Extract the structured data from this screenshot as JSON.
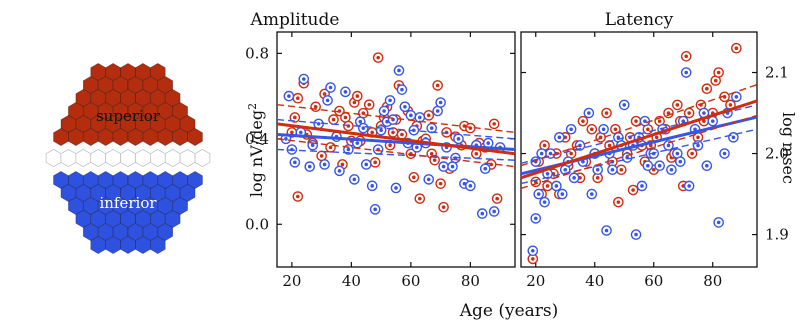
{
  "colors": {
    "superior": "#b32d0e",
    "inferior": "#2f51e0",
    "separator": "#ffffff",
    "red": "#d02c10",
    "blue": "#3756e6"
  },
  "hexmap": {
    "superior_label": "superior",
    "inferior_label": "inferior"
  },
  "chart_data": [
    {
      "type": "scatter",
      "title": "Amplitude",
      "xlabel": "Age (years)",
      "ylabel": "log nV/deg2",
      "ylabel_base": "log nV/deg",
      "ylabel_sup": "2",
      "xlim": [
        15,
        95
      ],
      "ylim": [
        -0.2,
        0.9
      ],
      "xticks": [
        20,
        40,
        60,
        80
      ],
      "yticks": [
        0.0,
        0.4,
        0.8
      ],
      "ytick_labels": [
        "0.0",
        "0.4",
        "0.8"
      ],
      "legend": "none",
      "fits": {
        "red": {
          "x": [
            15,
            95
          ],
          "y": [
            0.47,
            0.33
          ],
          "ci_lower": [
            0.4,
            0.27
          ],
          "ci_upper": [
            0.56,
            0.43
          ]
        },
        "blue": {
          "x": [
            15,
            95
          ],
          "y": [
            0.42,
            0.35
          ],
          "ci_lower": [
            0.35,
            0.3
          ],
          "ci_upper": [
            0.49,
            0.4
          ]
        }
      },
      "series": [
        {
          "color": "red",
          "points": [
            [
              20,
              0.43
            ],
            [
              21,
              0.5
            ],
            [
              22,
              0.59
            ],
            [
              22,
              0.13
            ],
            [
              24,
              0.66
            ],
            [
              25,
              0.42
            ],
            [
              27,
              0.38
            ],
            [
              28,
              0.55
            ],
            [
              30,
              0.32
            ],
            [
              31,
              0.61
            ],
            [
              33,
              0.36
            ],
            [
              34,
              0.49
            ],
            [
              36,
              0.53
            ],
            [
              37,
              0.28
            ],
            [
              38,
              0.5
            ],
            [
              39,
              0.46
            ],
            [
              40,
              0.39
            ],
            [
              41,
              0.57
            ],
            [
              42,
              0.6
            ],
            [
              43,
              0.39
            ],
            [
              44,
              0.52
            ],
            [
              46,
              0.56
            ],
            [
              47,
              0.43
            ],
            [
              48,
              0.29
            ],
            [
              49,
              0.78
            ],
            [
              50,
              0.46
            ],
            [
              51,
              0.5
            ],
            [
              52,
              0.55
            ],
            [
              53,
              0.37
            ],
            [
              54,
              0.43
            ],
            [
              55,
              0.49
            ],
            [
              56,
              0.65
            ],
            [
              57,
              0.42
            ],
            [
              58,
              0.55
            ],
            [
              59,
              0.53
            ],
            [
              60,
              0.33
            ],
            [
              61,
              0.22
            ],
            [
              62,
              0.46
            ],
            [
              63,
              0.12
            ],
            [
              64,
              0.39
            ],
            [
              65,
              0.4
            ],
            [
              66,
              0.51
            ],
            [
              67,
              0.33
            ],
            [
              68,
              0.3
            ],
            [
              69,
              0.65
            ],
            [
              70,
              0.19
            ],
            [
              71,
              0.08
            ],
            [
              72,
              0.43
            ],
            [
              73,
              0.26
            ],
            [
              75,
              0.41
            ],
            [
              77,
              0.37
            ],
            [
              78,
              0.46
            ],
            [
              80,
              0.45
            ],
            [
              82,
              0.33
            ],
            [
              83,
              0.38
            ],
            [
              85,
              0.36
            ],
            [
              87,
              0.28
            ],
            [
              88,
              0.47
            ],
            [
              89,
              0.12
            ]
          ]
        },
        {
          "color": "blue",
          "points": [
            [
              18,
              0.4
            ],
            [
              19,
              0.6
            ],
            [
              20,
              0.35
            ],
            [
              21,
              0.29
            ],
            [
              23,
              0.43
            ],
            [
              24,
              0.68
            ],
            [
              26,
              0.27
            ],
            [
              27,
              0.37
            ],
            [
              29,
              0.47
            ],
            [
              31,
              0.28
            ],
            [
              32,
              0.58
            ],
            [
              33,
              0.64
            ],
            [
              35,
              0.41
            ],
            [
              36,
              0.25
            ],
            [
              38,
              0.62
            ],
            [
              39,
              0.35
            ],
            [
              41,
              0.21
            ],
            [
              42,
              0.38
            ],
            [
              43,
              0.48
            ],
            [
              44,
              0.45
            ],
            [
              45,
              0.28
            ],
            [
              47,
              0.18
            ],
            [
              48,
              0.07
            ],
            [
              49,
              0.35
            ],
            [
              50,
              0.44
            ],
            [
              51,
              0.53
            ],
            [
              52,
              0.48
            ],
            [
              53,
              0.58
            ],
            [
              54,
              0.49
            ],
            [
              55,
              0.17
            ],
            [
              56,
              0.72
            ],
            [
              57,
              0.63
            ],
            [
              58,
              0.55
            ],
            [
              59,
              0.38
            ],
            [
              60,
              0.51
            ],
            [
              61,
              0.44
            ],
            [
              62,
              0.36
            ],
            [
              63,
              0.5
            ],
            [
              65,
              0.38
            ],
            [
              66,
              0.21
            ],
            [
              67,
              0.45
            ],
            [
              69,
              0.53
            ],
            [
              70,
              0.57
            ],
            [
              71,
              0.27
            ],
            [
              72,
              0.36
            ],
            [
              74,
              0.27
            ],
            [
              75,
              0.31
            ],
            [
              76,
              0.4
            ],
            [
              78,
              0.19
            ],
            [
              80,
              0.18
            ],
            [
              82,
              0.37
            ],
            [
              84,
              0.05
            ],
            [
              85,
              0.26
            ],
            [
              86,
              0.38
            ],
            [
              88,
              0.06
            ],
            [
              90,
              0.36
            ]
          ]
        }
      ]
    },
    {
      "type": "scatter",
      "title": "Latency",
      "xlabel": "Age (years)",
      "ylabel": "log msec",
      "xlim": [
        15,
        95
      ],
      "ylim": [
        1.86,
        2.15
      ],
      "xticks": [
        20,
        40,
        60,
        80
      ],
      "yticks": [
        1.9,
        2.0,
        2.1
      ],
      "ytick_labels": [
        "1.9",
        "2.0",
        "2.1"
      ],
      "legend": "none",
      "fits": {
        "red": {
          "x": [
            15,
            95
          ],
          "y": [
            1.97,
            2.065
          ],
          "ci_lower": [
            1.957,
            2.047
          ],
          "ci_upper": [
            1.985,
            2.085
          ]
        },
        "blue": {
          "x": [
            15,
            95
          ],
          "y": [
            1.975,
            2.045
          ],
          "ci_lower": [
            1.963,
            2.03
          ],
          "ci_upper": [
            1.988,
            2.06
          ]
        }
      },
      "series": [
        {
          "color": "red",
          "points": [
            [
              19,
              1.87
            ],
            [
              20,
              1.965
            ],
            [
              21,
              1.99
            ],
            [
              22,
              1.95
            ],
            [
              23,
              2.01
            ],
            [
              24,
              1.96
            ],
            [
              26,
              1.975
            ],
            [
              27,
              2.0
            ],
            [
              28,
              1.95
            ],
            [
              30,
              2.02
            ],
            [
              31,
              1.985
            ],
            [
              32,
              2.0
            ],
            [
              34,
              2.01
            ],
            [
              35,
              1.97
            ],
            [
              36,
              2.04
            ],
            [
              37,
              1.99
            ],
            [
              39,
              2.03
            ],
            [
              40,
              2.0
            ],
            [
              41,
              1.97
            ],
            [
              42,
              2.02
            ],
            [
              44,
              2.05
            ],
            [
              45,
              2.01
            ],
            [
              46,
              1.99
            ],
            [
              47,
              2.03
            ],
            [
              48,
              1.94
            ],
            [
              49,
              1.98
            ],
            [
              51,
              2.0
            ],
            [
              52,
              2.02
            ],
            [
              53,
              1.955
            ],
            [
              54,
              2.04
            ],
            [
              56,
              2.01
            ],
            [
              57,
              1.99
            ],
            [
              58,
              2.03
            ],
            [
              59,
              2.01
            ],
            [
              60,
              1.98
            ],
            [
              61,
              2.02
            ],
            [
              62,
              2.04
            ],
            [
              64,
              2.03
            ],
            [
              65,
              2.05
            ],
            [
              66,
              1.995
            ],
            [
              67,
              2.0
            ],
            [
              68,
              2.06
            ],
            [
              69,
              2.04
            ],
            [
              70,
              1.96
            ],
            [
              71,
              2.12
            ],
            [
              72,
              2.05
            ],
            [
              73,
              2.0
            ],
            [
              75,
              2.02
            ],
            [
              76,
              2.06
            ],
            [
              77,
              2.04
            ],
            [
              78,
              2.08
            ],
            [
              80,
              2.05
            ],
            [
              81,
              2.09
            ],
            [
              82,
              2.1
            ],
            [
              84,
              2.07
            ],
            [
              86,
              2.06
            ],
            [
              88,
              2.13
            ]
          ]
        },
        {
          "color": "blue",
          "points": [
            [
              19,
              1.88
            ],
            [
              20,
              1.92
            ],
            [
              20,
              1.99
            ],
            [
              21,
              1.95
            ],
            [
              22,
              2.0
            ],
            [
              23,
              1.94
            ],
            [
              24,
              1.975
            ],
            [
              25,
              2.0
            ],
            [
              27,
              1.96
            ],
            [
              28,
              2.02
            ],
            [
              29,
              1.95
            ],
            [
              30,
              1.98
            ],
            [
              31,
              1.99
            ],
            [
              32,
              2.03
            ],
            [
              33,
              1.97
            ],
            [
              35,
              2.01
            ],
            [
              36,
              1.99
            ],
            [
              38,
              2.05
            ],
            [
              39,
              1.95
            ],
            [
              40,
              2.0
            ],
            [
              41,
              1.98
            ],
            [
              43,
              2.03
            ],
            [
              44,
              1.905
            ],
            [
              45,
              2.0
            ],
            [
              46,
              1.98
            ],
            [
              48,
              2.02
            ],
            [
              49,
              2.01
            ],
            [
              50,
              2.06
            ],
            [
              51,
              1.995
            ],
            [
              53,
              2.01
            ],
            [
              54,
              1.9
            ],
            [
              55,
              2.02
            ],
            [
              56,
              1.96
            ],
            [
              57,
              2.04
            ],
            [
              58,
              1.985
            ],
            [
              59,
              2.0
            ],
            [
              60,
              2.0
            ],
            [
              62,
              1.985
            ],
            [
              63,
              2.03
            ],
            [
              65,
              2.01
            ],
            [
              66,
              1.98
            ],
            [
              68,
              2.0
            ],
            [
              69,
              1.99
            ],
            [
              70,
              2.04
            ],
            [
              71,
              2.1
            ],
            [
              72,
              1.96
            ],
            [
              74,
              2.03
            ],
            [
              75,
              2.01
            ],
            [
              77,
              2.05
            ],
            [
              78,
              1.985
            ],
            [
              80,
              2.04
            ],
            [
              82,
              1.915
            ],
            [
              84,
              2.0
            ],
            [
              85,
              2.05
            ],
            [
              87,
              2.02
            ],
            [
              88,
              2.07
            ]
          ]
        }
      ]
    }
  ]
}
